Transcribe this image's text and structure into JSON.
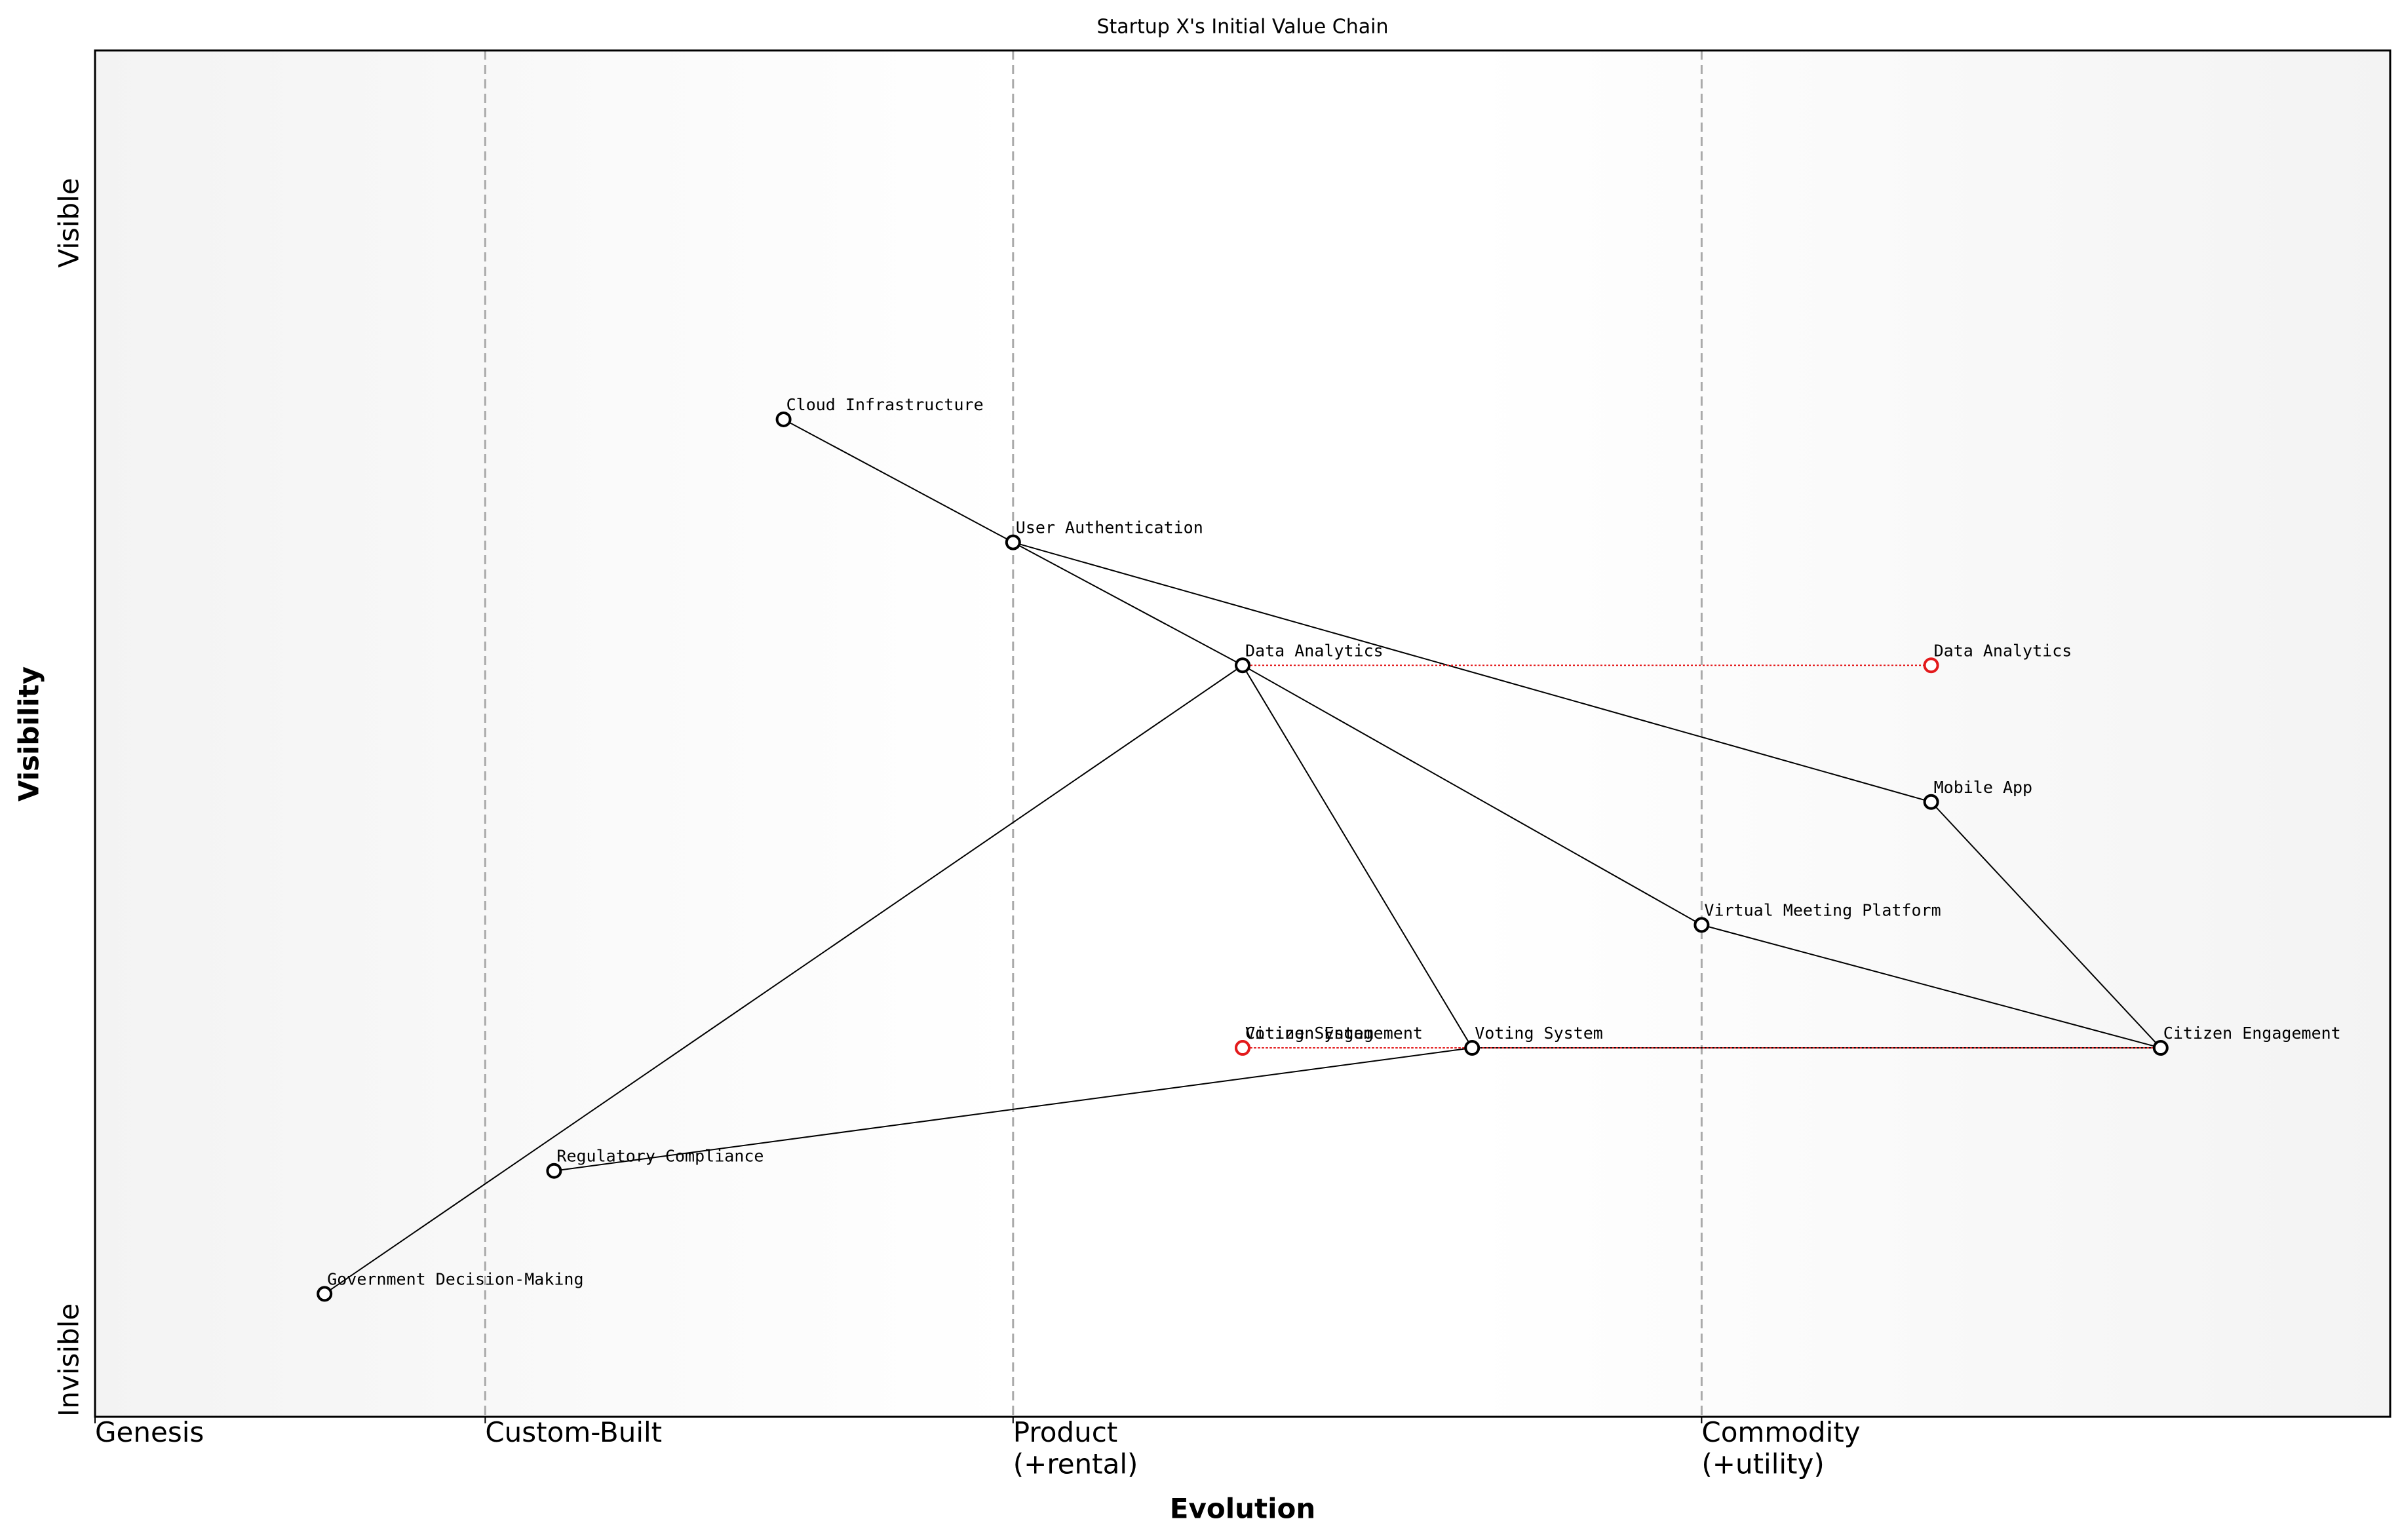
{
  "chart_data": {
    "type": "wardley",
    "title": "Startup X's Initial Value Chain",
    "xlabel": "Evolution",
    "ylabel": "Visibility",
    "y_ends": [
      "Invisible",
      "Visible"
    ],
    "xlim": [
      0,
      1
    ],
    "ylim": [
      0,
      1
    ],
    "xticks": [
      {
        "value": 0,
        "label": "Genesis"
      },
      {
        "value": 0.17,
        "label": "Custom-Built"
      },
      {
        "value": 0.4,
        "label": "Product\n(+rental)"
      },
      {
        "value": 0.7,
        "label": "Commodity\n(+utility)"
      }
    ],
    "color": "#000000",
    "evolve_color": "#e31a1c",
    "components": [
      {
        "name": "Cloud Infrastructure",
        "x": 0.3,
        "y": 0.73
      },
      {
        "name": "User Authentication",
        "x": 0.4,
        "y": 0.64
      },
      {
        "name": "Data Analytics",
        "x": 0.5,
        "y": 0.55
      },
      {
        "name": "Mobile App",
        "x": 0.8,
        "y": 0.45
      },
      {
        "name": "Virtual Meeting Platform",
        "x": 0.7,
        "y": 0.36
      },
      {
        "name": "Voting System",
        "x": 0.6,
        "y": 0.27
      },
      {
        "name": "Citizen Engagement",
        "x": 0.9,
        "y": 0.27
      },
      {
        "name": "Regulatory Compliance",
        "x": 0.2,
        "y": 0.18
      },
      {
        "name": "Government Decision-Making",
        "x": 0.1,
        "y": 0.09
      }
    ],
    "evolved": [
      {
        "name": "Data Analytics",
        "x": 0.8,
        "y": 0.55
      },
      {
        "name": "Voting System",
        "x": 0.5,
        "y": 0.27
      },
      {
        "name": "Citizen Engagement",
        "x": 0.5,
        "y": 0.27
      }
    ],
    "links": [
      [
        "Cloud Infrastructure",
        "User Authentication"
      ],
      [
        "User Authentication",
        "Data Analytics"
      ],
      [
        "User Authentication",
        "Mobile App"
      ],
      [
        "Data Analytics",
        "Government Decision-Making"
      ],
      [
        "Data Analytics",
        "Voting System"
      ],
      [
        "Data Analytics",
        "Virtual Meeting Platform"
      ],
      [
        "Mobile App",
        "Citizen Engagement"
      ],
      [
        "Virtual Meeting Platform",
        "Citizen Engagement"
      ],
      [
        "Voting System",
        "Regulatory Compliance"
      ],
      [
        "Voting System",
        "Citizen Engagement"
      ]
    ]
  }
}
